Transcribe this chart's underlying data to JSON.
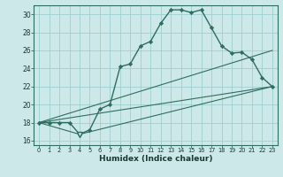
{
  "xlabel": "Humidex (Indice chaleur)",
  "bg_color": "#cce8e8",
  "grid_color": "#9ecece",
  "line_color": "#2e6e60",
  "xlim": [
    -0.5,
    23.5
  ],
  "ylim": [
    15.5,
    31.0
  ],
  "xticks": [
    0,
    1,
    2,
    3,
    4,
    5,
    6,
    7,
    8,
    9,
    10,
    11,
    12,
    13,
    14,
    15,
    16,
    17,
    18,
    19,
    20,
    21,
    22,
    23
  ],
  "yticks": [
    16,
    18,
    20,
    22,
    24,
    26,
    28,
    30
  ],
  "line1_x": [
    0,
    1,
    2,
    3,
    4,
    5,
    6,
    7,
    8,
    9,
    10,
    11,
    12,
    13,
    14,
    15,
    16,
    17,
    18,
    19,
    20,
    21,
    22,
    23
  ],
  "line1_y": [
    18.0,
    18.0,
    18.0,
    18.0,
    16.7,
    17.2,
    19.5,
    20.0,
    24.2,
    24.5,
    26.5,
    27.0,
    29.0,
    30.5,
    30.5,
    30.2,
    30.5,
    28.5,
    26.5,
    25.7,
    25.8,
    25.0,
    23.0,
    22.0
  ],
  "line2_x": [
    0,
    4,
    23
  ],
  "line2_y": [
    18.0,
    16.7,
    22.0
  ],
  "line3_x": [
    0,
    23
  ],
  "line3_y": [
    18.0,
    22.0
  ],
  "line4_x": [
    0,
    23
  ],
  "line4_y": [
    18.0,
    26.0
  ],
  "triangle_x": 4,
  "triangle_y": 16.7
}
